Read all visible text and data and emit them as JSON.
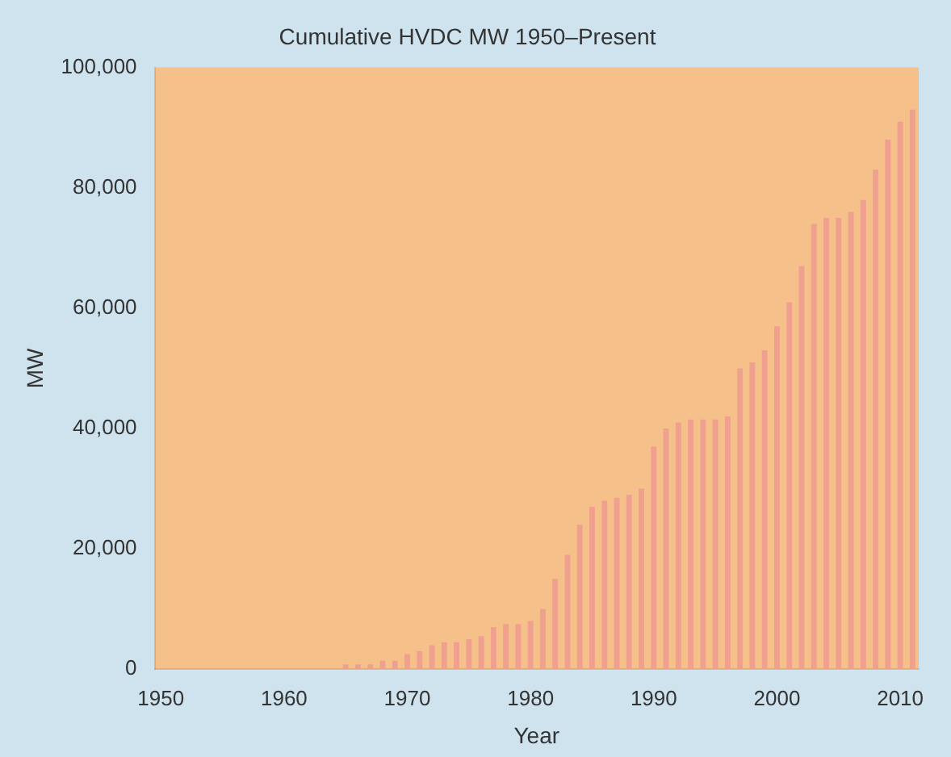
{
  "chart_data": {
    "type": "bar",
    "title": "Cumulative HVDC MW 1950–Present",
    "xlabel": "Year",
    "ylabel": "MW",
    "x": [
      1950,
      1951,
      1952,
      1953,
      1954,
      1955,
      1956,
      1957,
      1958,
      1959,
      1960,
      1961,
      1962,
      1963,
      1964,
      1965,
      1966,
      1967,
      1968,
      1969,
      1970,
      1971,
      1972,
      1973,
      1974,
      1975,
      1976,
      1977,
      1978,
      1979,
      1980,
      1981,
      1982,
      1983,
      1984,
      1985,
      1986,
      1987,
      1988,
      1989,
      1990,
      1991,
      1992,
      1993,
      1994,
      1995,
      1996,
      1997,
      1998,
      1999,
      2000,
      2001,
      2002,
      2003,
      2004,
      2005,
      2006,
      2007,
      2008,
      2009,
      2010,
      2011
    ],
    "values": [
      0,
      0,
      0,
      0,
      0,
      0,
      0,
      0,
      0,
      0,
      0,
      0,
      0,
      0,
      0,
      800,
      800,
      800,
      1400,
      1400,
      2500,
      3000,
      4000,
      4500,
      4500,
      5000,
      5500,
      7000,
      7500,
      7500,
      8000,
      10000,
      15000,
      19000,
      24000,
      27000,
      28000,
      28500,
      29000,
      30000,
      37000,
      40000,
      41000,
      41500,
      41500,
      41500,
      42000,
      50000,
      51000,
      53000,
      57000,
      61000,
      67000,
      74000,
      75000,
      75000,
      76000,
      78000,
      83000,
      88000,
      91000,
      93000
    ],
    "color": "#f0a08e",
    "xlim": [
      1949.5,
      2011.5
    ],
    "xticks": [
      1950,
      1960,
      1970,
      1980,
      1990,
      2000,
      2010
    ],
    "ylim": [
      0,
      100000
    ],
    "yticks": [
      {
        "value": 0,
        "label": "0"
      },
      {
        "value": 20000,
        "label": "20,000"
      },
      {
        "value": 40000,
        "label": "40,000"
      },
      {
        "value": 60000,
        "label": "60,000"
      },
      {
        "value": 80000,
        "label": "80,000"
      },
      {
        "value": 100000,
        "label": "100,000"
      }
    ],
    "grid": false,
    "legend": false
  }
}
